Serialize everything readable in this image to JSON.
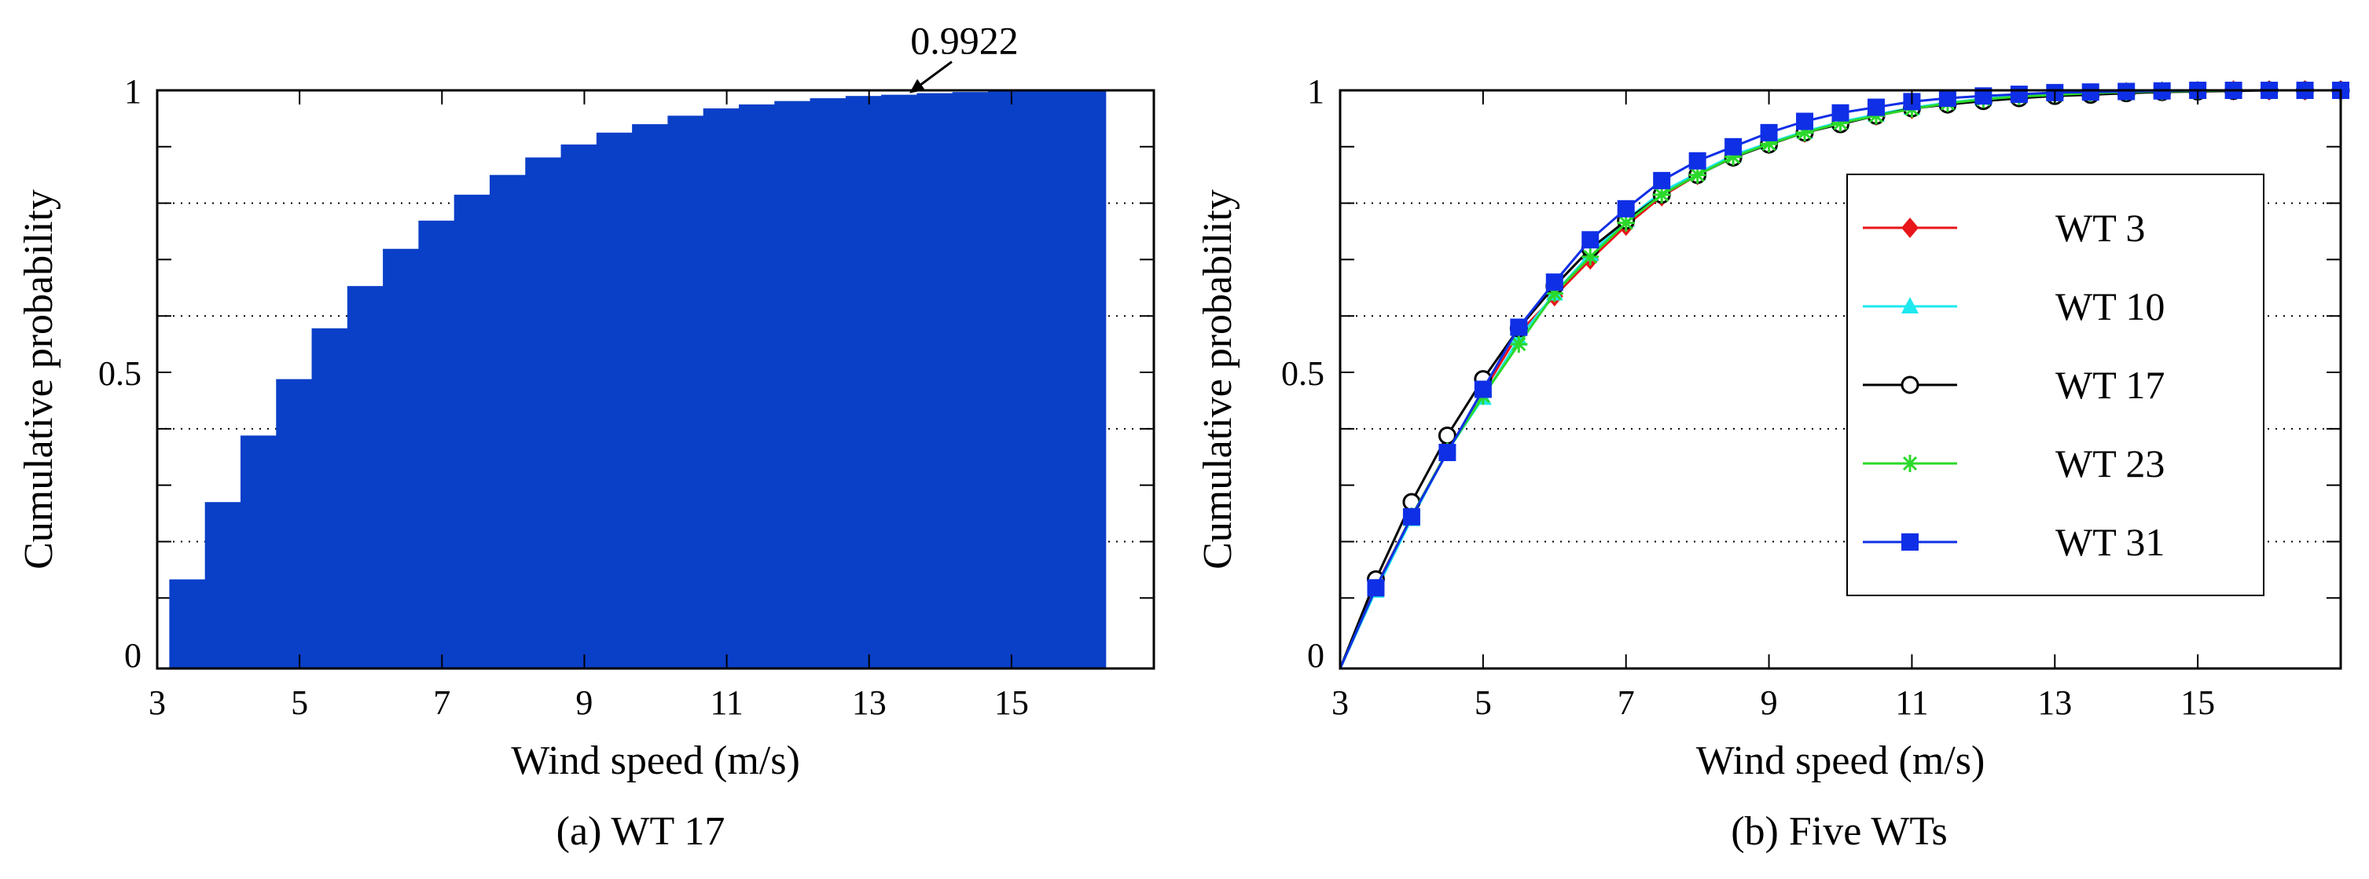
{
  "chart_data": [
    {
      "type": "bar",
      "caption": "(a) WT 17",
      "xlabel": "Wind speed (m/s)",
      "ylabel": "Cumulative probability",
      "xlim": [
        3,
        17
      ],
      "ylim": [
        -0.025,
        1.0
      ],
      "xticks": [
        3,
        5,
        7,
        9,
        11,
        13,
        15
      ],
      "yticks": [
        0,
        0.5,
        1
      ],
      "ytick_labels": [
        "0",
        "0.5",
        "1"
      ],
      "grid_y": [
        0.2,
        0.4,
        0.6,
        0.8
      ],
      "color": "#0a3fc8",
      "annotation": {
        "text": "0.9922",
        "x": 13.5,
        "y": 0.9922
      },
      "x": [
        3.5,
        4,
        4.5,
        5,
        5.5,
        6,
        6.5,
        7,
        7.5,
        8,
        8.5,
        9,
        9.5,
        10,
        10.5,
        11,
        11.5,
        12,
        12.5,
        13,
        13.5,
        14,
        14.5,
        15,
        15.5,
        16
      ],
      "values": [
        0.133,
        0.27,
        0.388,
        0.488,
        0.578,
        0.653,
        0.719,
        0.769,
        0.815,
        0.85,
        0.881,
        0.904,
        0.925,
        0.94,
        0.955,
        0.968,
        0.975,
        0.981,
        0.986,
        0.99,
        0.9922,
        0.995,
        0.997,
        0.998,
        0.999,
        1.0
      ]
    },
    {
      "type": "line",
      "caption": "(b) Five WTs",
      "xlabel": "Wind speed (m/s)",
      "ylabel": "Cumulative probability",
      "xlim": [
        3,
        17
      ],
      "ylim": [
        -0.025,
        1.0
      ],
      "xticks": [
        3,
        5,
        7,
        9,
        11,
        13,
        15
      ],
      "yticks": [
        0,
        0.5,
        1
      ],
      "ytick_labels": [
        "0",
        "0.5",
        "1"
      ],
      "grid_y": [
        0.2,
        0.4,
        0.6,
        0.8
      ],
      "legend_position": "center-right",
      "x": [
        3,
        3.5,
        4,
        4.5,
        5,
        5.5,
        6,
        6.5,
        7,
        7.5,
        8,
        8.5,
        9,
        9.5,
        10,
        10.5,
        11,
        11.5,
        12,
        12.5,
        13,
        13.5,
        14,
        14.5,
        15,
        15.5,
        16,
        16.5,
        17
      ],
      "series": [
        {
          "name": "WT 3",
          "color": "#e8161b",
          "marker": "diamond",
          "values": [
            -0.025,
            0.12,
            0.245,
            0.36,
            0.465,
            0.57,
            0.635,
            0.7,
            0.76,
            0.812,
            0.85,
            0.882,
            0.905,
            0.925,
            0.942,
            0.955,
            0.967,
            0.976,
            0.983,
            0.988,
            0.992,
            0.995,
            0.997,
            0.998,
            0.999,
            1.0,
            1.0,
            1.0,
            1.0
          ]
        },
        {
          "name": "WT 10",
          "color": "#1ee8f0",
          "marker": "triangle",
          "values": [
            -0.025,
            0.113,
            0.24,
            0.36,
            0.455,
            0.56,
            0.64,
            0.71,
            0.77,
            0.82,
            0.853,
            0.885,
            0.907,
            0.927,
            0.944,
            0.957,
            0.969,
            0.978,
            0.985,
            0.99,
            0.993,
            0.996,
            0.998,
            0.999,
            1.0,
            1.0,
            1.0,
            1.0,
            1.0
          ]
        },
        {
          "name": "WT 17",
          "color": "#000000",
          "marker": "circle",
          "values": [
            -0.025,
            0.133,
            0.27,
            0.388,
            0.488,
            0.578,
            0.653,
            0.719,
            0.769,
            0.815,
            0.85,
            0.881,
            0.904,
            0.925,
            0.94,
            0.955,
            0.968,
            0.975,
            0.981,
            0.986,
            0.99,
            0.9922,
            0.995,
            0.997,
            0.998,
            0.999,
            1.0,
            1.0,
            1.0
          ]
        },
        {
          "name": "WT 23",
          "color": "#2bd92b",
          "marker": "asterisk",
          "values": [
            -0.025,
            0.118,
            0.245,
            0.36,
            0.458,
            0.55,
            0.64,
            0.705,
            0.765,
            0.815,
            0.85,
            0.882,
            0.905,
            0.925,
            0.942,
            0.955,
            0.967,
            0.977,
            0.984,
            0.989,
            0.992,
            0.995,
            0.997,
            0.998,
            0.999,
            1.0,
            1.0,
            1.0,
            1.0
          ]
        },
        {
          "name": "WT 31",
          "color": "#0f2fe6",
          "marker": "square",
          "values": [
            -0.025,
            0.118,
            0.244,
            0.358,
            0.47,
            0.58,
            0.66,
            0.735,
            0.79,
            0.84,
            0.875,
            0.9,
            0.925,
            0.945,
            0.96,
            0.97,
            0.98,
            0.986,
            0.99,
            0.993,
            0.996,
            0.997,
            0.998,
            0.999,
            1.0,
            1.0,
            1.0,
            1.0,
            1.0
          ]
        }
      ]
    }
  ]
}
